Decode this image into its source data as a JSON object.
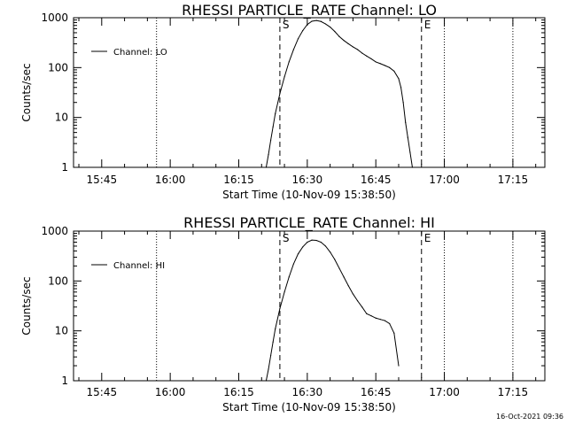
{
  "footer": {
    "timestamp": "16-Oct-2021 09:36"
  },
  "chart_data": [
    {
      "type": "line",
      "title": "RHESSI PARTICLE_RATE Channel: LO",
      "xlabel": "Start Time (10-Nov-09 15:38:50)",
      "ylabel": "Counts/sec",
      "yscale": "log",
      "ylim": [
        1,
        1000
      ],
      "xlim": [
        "15:38:50",
        "17:22:00"
      ],
      "x_ticks": [
        "15:45",
        "16:00",
        "16:15",
        "16:30",
        "16:45",
        "17:00",
        "17:15"
      ],
      "y_ticks": [
        "1",
        "10",
        "100",
        "1000"
      ],
      "grid": false,
      "legend": {
        "position": "top-left",
        "entries": [
          "Channel: LO"
        ]
      },
      "markers": {
        "dotted_lines": [
          "15:57",
          "17:00",
          "17:15"
        ],
        "start_line": {
          "label": "S",
          "time": "16:24"
        },
        "end_line": {
          "label": "E",
          "time": "16:55"
        }
      },
      "series": [
        {
          "name": "Channel: LO",
          "x": [
            "16:21",
            "16:21:30",
            "16:22",
            "16:22:30",
            "16:23",
            "16:24",
            "16:25",
            "16:26",
            "16:27",
            "16:28",
            "16:29",
            "16:30",
            "16:31",
            "16:32",
            "16:33",
            "16:34",
            "16:35",
            "16:36",
            "16:37",
            "16:38",
            "16:39",
            "16:40",
            "16:41",
            "16:42",
            "16:43",
            "16:44",
            "16:45",
            "16:46",
            "16:47",
            "16:48",
            "16:49",
            "16:50",
            "16:50:30",
            "16:51",
            "16:51:30",
            "16:52",
            "16:52:30",
            "16:53"
          ],
          "values": [
            1,
            1.8,
            3.5,
            6.5,
            12,
            30,
            65,
            130,
            230,
            380,
            550,
            730,
            850,
            880,
            840,
            750,
            650,
            530,
            420,
            350,
            300,
            260,
            230,
            195,
            170,
            150,
            130,
            120,
            110,
            100,
            85,
            60,
            40,
            20,
            8,
            4,
            2,
            1
          ]
        }
      ]
    },
    {
      "type": "line",
      "title": "RHESSI PARTICLE_RATE Channel: HI",
      "xlabel": "Start Time (10-Nov-09 15:38:50)",
      "ylabel": "Counts/sec",
      "yscale": "log",
      "ylim": [
        1,
        1000
      ],
      "xlim": [
        "15:38:50",
        "17:22:00"
      ],
      "x_ticks": [
        "15:45",
        "16:00",
        "16:15",
        "16:30",
        "16:45",
        "17:00",
        "17:15"
      ],
      "y_ticks": [
        "1",
        "10",
        "100",
        "1000"
      ],
      "grid": false,
      "legend": {
        "position": "top-left",
        "entries": [
          "Channel: HI"
        ]
      },
      "markers": {
        "dotted_lines": [
          "15:57",
          "17:00",
          "17:15"
        ],
        "start_line": {
          "label": "S",
          "time": "16:24"
        },
        "end_line": {
          "label": "E",
          "time": "16:55"
        }
      },
      "series": [
        {
          "name": "Channel: HI",
          "x": [
            "16:21",
            "16:21:30",
            "16:22",
            "16:22:30",
            "16:23",
            "16:24",
            "16:25",
            "16:26",
            "16:27",
            "16:28",
            "16:29",
            "16:30",
            "16:31",
            "16:32",
            "16:33",
            "16:34",
            "16:35",
            "16:36",
            "16:37",
            "16:38",
            "16:39",
            "16:40",
            "16:41",
            "16:42",
            "16:43",
            "16:44",
            "16:45",
            "16:46",
            "16:47",
            "16:48",
            "16:49",
            "16:50"
          ],
          "values": [
            1,
            1.7,
            3.2,
            6,
            11,
            28,
            60,
            120,
            220,
            350,
            480,
            600,
            660,
            650,
            600,
            500,
            380,
            270,
            180,
            120,
            80,
            55,
            40,
            30,
            22,
            20,
            18,
            17,
            16,
            14,
            9,
            2
          ]
        }
      ]
    }
  ]
}
